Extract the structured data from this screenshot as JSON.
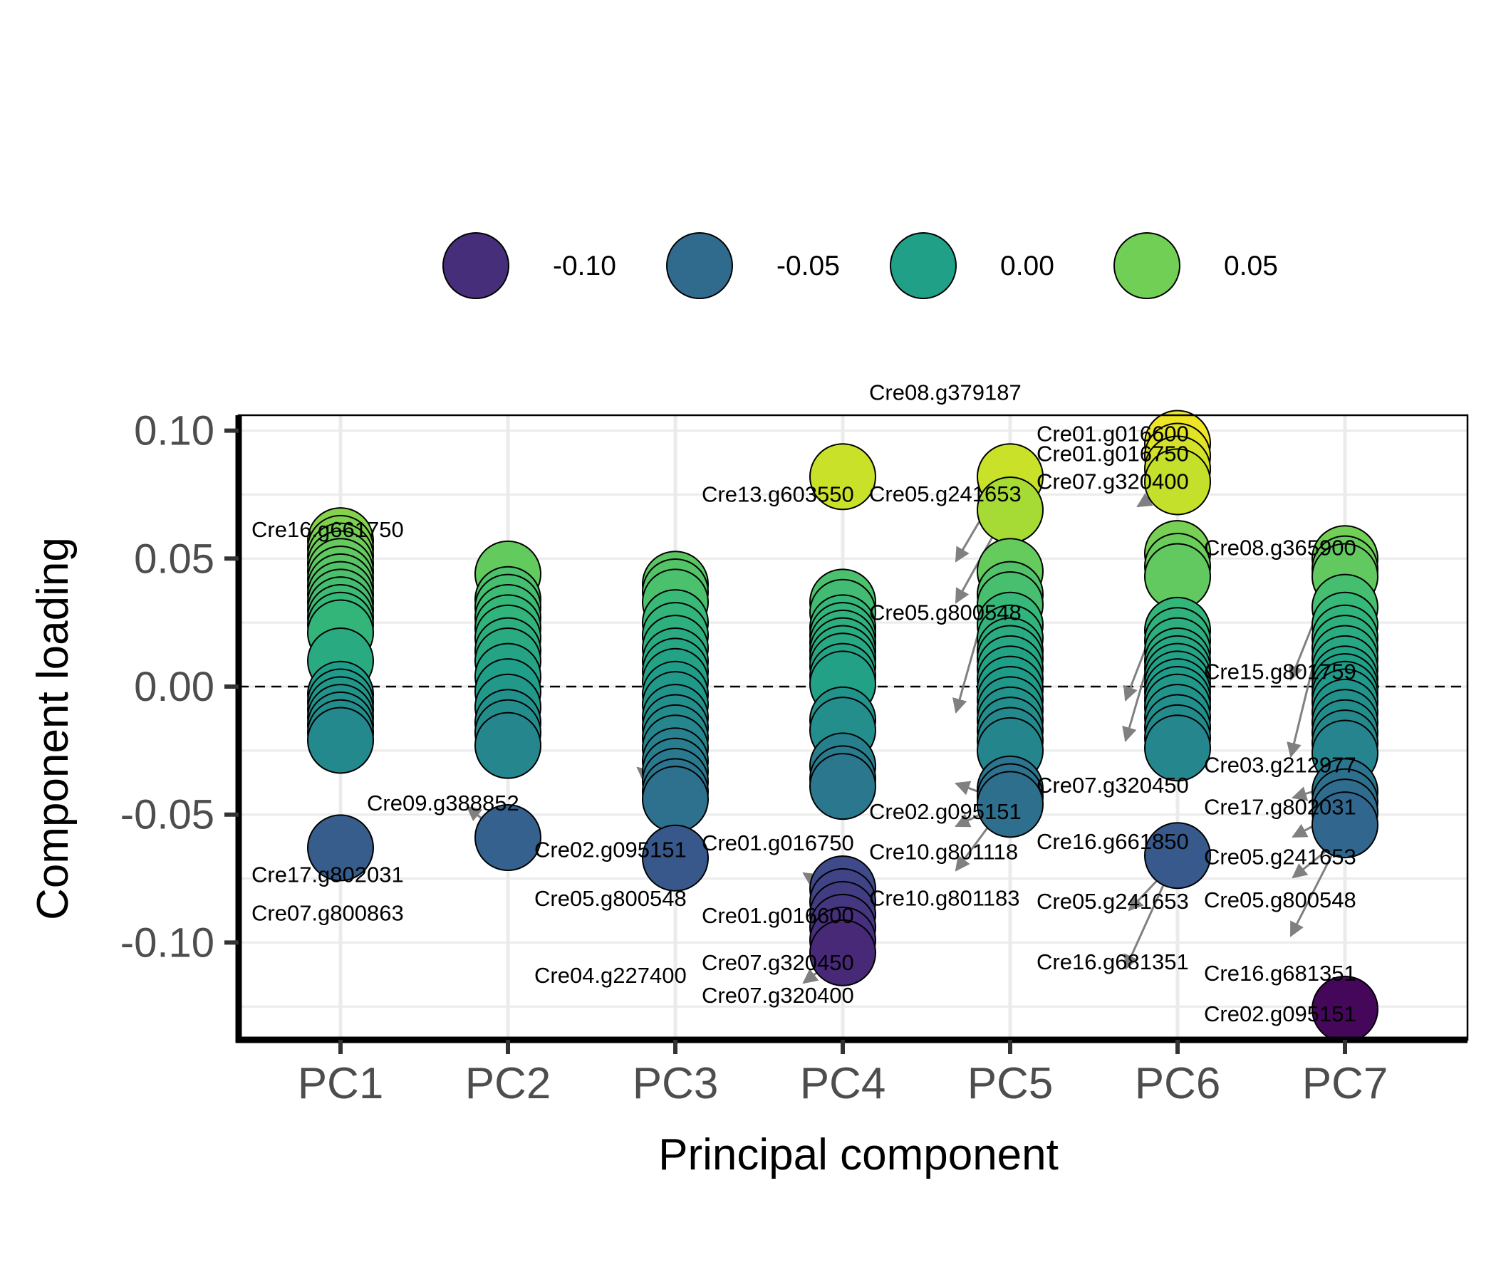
{
  "chart_data": {
    "type": "scatter",
    "title": "",
    "xlabel": "Principal component",
    "ylabel": "Component loading",
    "categories": [
      "PC1",
      "PC2",
      "PC3",
      "PC4",
      "PC5",
      "PC6",
      "PC7"
    ],
    "ylim": [
      -0.138,
      0.106
    ],
    "yticks": [
      -0.1,
      -0.05,
      0.0,
      0.05,
      0.1
    ],
    "ytick_labels": [
      "-0.10",
      "-0.05",
      "0.00",
      "0.05",
      "0.10"
    ],
    "reference_line": {
      "y": 0.0,
      "style": "dashed"
    },
    "grid": true,
    "color_scale": {
      "palette": "viridis",
      "min": -0.13,
      "max": 0.1,
      "stops": [
        "#440154",
        "#482878",
        "#3e4a89",
        "#31688e",
        "#26828e",
        "#1f9e89",
        "#35b779",
        "#6ece58",
        "#b5de2b",
        "#fde725"
      ]
    },
    "legend": {
      "position": "top",
      "entries": [
        {
          "label": "-0.10",
          "value": -0.1
        },
        {
          "label": "-0.05",
          "value": -0.05
        },
        {
          "label": "0.00",
          "value": 0.0
        },
        {
          "label": "0.05",
          "value": 0.05
        }
      ]
    },
    "series": [
      {
        "category": "PC1",
        "values": [
          0.057,
          0.054,
          0.051,
          0.048,
          0.045,
          0.042,
          0.039,
          0.036,
          0.033,
          0.03,
          0.027,
          0.024,
          0.021,
          0.01,
          -0.003,
          -0.006,
          -0.009,
          -0.012,
          -0.015,
          -0.018,
          -0.021,
          -0.063
        ]
      },
      {
        "category": "PC2",
        "values": [
          0.044,
          0.034,
          0.031,
          0.027,
          0.023,
          0.019,
          0.014,
          0.01,
          0.004,
          -0.002,
          -0.008,
          -0.014,
          -0.018,
          -0.023,
          -0.059
        ]
      },
      {
        "category": "PC3",
        "values": [
          0.04,
          0.037,
          0.033,
          0.025,
          0.02,
          0.015,
          0.01,
          0.006,
          0.002,
          -0.003,
          -0.007,
          -0.012,
          -0.016,
          -0.02,
          -0.024,
          -0.029,
          -0.033,
          -0.037,
          -0.041,
          -0.044,
          -0.067
        ]
      },
      {
        "category": "PC4",
        "values": [
          0.082,
          0.033,
          0.029,
          0.023,
          0.02,
          0.017,
          0.014,
          0.011,
          0.008,
          0.004,
          0.001,
          -0.013,
          -0.017,
          -0.031,
          -0.036,
          -0.039,
          -0.079,
          -0.084,
          -0.089,
          -0.094,
          -0.099,
          -0.104
        ]
      },
      {
        "category": "PC5",
        "values": [
          0.082,
          0.069,
          0.045,
          0.036,
          0.032,
          0.024,
          0.019,
          0.014,
          0.011,
          0.007,
          0.003,
          -0.001,
          -0.005,
          -0.009,
          -0.013,
          -0.017,
          -0.021,
          -0.025,
          -0.04,
          -0.043,
          -0.046
        ]
      },
      {
        "category": "PC6",
        "values": [
          0.095,
          0.09,
          0.085,
          0.08,
          0.052,
          0.047,
          0.043,
          0.022,
          0.018,
          0.014,
          0.01,
          0.007,
          0.004,
          0.001,
          -0.002,
          -0.005,
          -0.008,
          -0.012,
          -0.016,
          -0.02,
          -0.024,
          -0.066
        ]
      },
      {
        "category": "PC7",
        "values": [
          0.05,
          0.046,
          0.043,
          0.031,
          0.024,
          0.019,
          0.015,
          0.011,
          0.007,
          0.003,
          0.0,
          -0.003,
          -0.006,
          -0.01,
          -0.014,
          -0.018,
          -0.022,
          -0.026,
          -0.041,
          -0.045,
          -0.049,
          -0.054,
          -0.126
        ]
      }
    ],
    "annotations": [
      {
        "category": "PC1",
        "text": "Cre16.g661750",
        "value": 0.057,
        "side": "top"
      },
      {
        "category": "PC1",
        "text": "Cre17.g802031",
        "value": -0.063,
        "side": "below"
      },
      {
        "category": "PC1",
        "text": "Cre07.g800863",
        "value": -0.063,
        "side": "below2"
      },
      {
        "category": "PC2",
        "text": "Cre09.g388852",
        "value": -0.059,
        "side": "upleft"
      },
      {
        "category": "PC3",
        "text": "Cre02.g095151",
        "value": -0.041,
        "side": "up"
      },
      {
        "category": "PC3",
        "text": "Cre05.g800548",
        "value": -0.044,
        "side": "mid"
      },
      {
        "category": "PC3",
        "text": "Cre04.g227400",
        "value": -0.067,
        "side": "low"
      },
      {
        "category": "PC4",
        "text": "Cre13.g603550",
        "value": 0.082,
        "side": "left"
      },
      {
        "category": "PC4",
        "text": "Cre01.g016750",
        "value": -0.084,
        "side": "a"
      },
      {
        "category": "PC4",
        "text": "Cre01.g016600",
        "value": -0.089,
        "side": "b"
      },
      {
        "category": "PC4",
        "text": "Cre07.g320450",
        "value": -0.099,
        "side": "c"
      },
      {
        "category": "PC4",
        "text": "Cre07.g320400",
        "value": -0.104,
        "side": "d"
      },
      {
        "category": "PC5",
        "text": "Cre08.g379187",
        "value": 0.082,
        "side": "a"
      },
      {
        "category": "PC5",
        "text": "Cre05.g241653",
        "value": 0.069,
        "side": "b"
      },
      {
        "category": "PC5",
        "text": "Cre05.g800548",
        "value": 0.045,
        "side": "c"
      },
      {
        "category": "PC5",
        "text": "Cre02.g095151",
        "value": -0.04,
        "side": "d"
      },
      {
        "category": "PC5",
        "text": "Cre10.g801118",
        "value": -0.043,
        "side": "e"
      },
      {
        "category": "PC5",
        "text": "Cre10.g801183",
        "value": -0.046,
        "side": "f"
      },
      {
        "category": "PC6",
        "text": "Cre01.g016600",
        "value": 0.095,
        "side": "a"
      },
      {
        "category": "PC6",
        "text": "Cre01.g016750",
        "value": 0.09,
        "side": "b"
      },
      {
        "category": "PC6",
        "text": "Cre07.g320400",
        "value": 0.085,
        "side": "c"
      },
      {
        "category": "PC6",
        "text": "Cre07.g320450",
        "value": 0.052,
        "side": "d"
      },
      {
        "category": "PC6",
        "text": "Cre16.g661850",
        "value": 0.047,
        "side": "e"
      },
      {
        "category": "PC6",
        "text": "Cre05.g241653",
        "value": -0.066,
        "side": "f"
      },
      {
        "category": "PC6",
        "text": "Cre16.g681351",
        "value": -0.066,
        "side": "g"
      },
      {
        "category": "PC7",
        "text": "Cre08.g365900",
        "value": 0.05,
        "side": "a"
      },
      {
        "category": "PC7",
        "text": "Cre15.g801759",
        "value": 0.046,
        "side": "b"
      },
      {
        "category": "PC7",
        "text": "Cre03.g212977",
        "value": 0.043,
        "side": "c"
      },
      {
        "category": "PC7",
        "text": "Cre17.g802031",
        "value": -0.041,
        "side": "d"
      },
      {
        "category": "PC7",
        "text": "Cre05.g241653",
        "value": -0.045,
        "side": "e"
      },
      {
        "category": "PC7",
        "text": "Cre05.g800548",
        "value": -0.049,
        "side": "f"
      },
      {
        "category": "PC7",
        "text": "Cre16.g681351",
        "value": -0.054,
        "side": "g"
      },
      {
        "category": "PC7",
        "text": "Cre02.g095151",
        "value": -0.126,
        "side": "h"
      }
    ]
  }
}
